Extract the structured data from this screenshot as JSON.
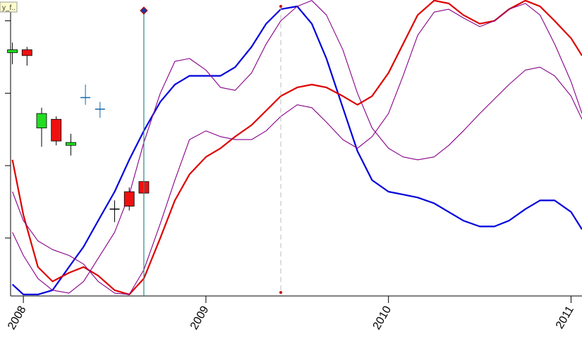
{
  "header_tag": "y_f..",
  "chart_data": {
    "type": "line",
    "title": "",
    "xlabel": "",
    "ylabel": "",
    "x_tick_labels": [
      "2008",
      "2009",
      "2010",
      "2011"
    ],
    "x_ticks": [
      2008.0,
      2009.0,
      2010.0,
      2011.0
    ],
    "xlim": [
      2007.93,
      2011.06
    ],
    "ylim": [
      0,
      100
    ],
    "y_tick_values": [
      20,
      45,
      70,
      95
    ],
    "y_tick_labels_visible": false,
    "grid": false,
    "legend": "none",
    "cursor_x": 2008.66,
    "dashed_marker_x": 2009.41,
    "series": [
      {
        "color": "#0000dd",
        "width": 2.2,
        "points": [
          [
            2007.94,
            4
          ],
          [
            2008.0,
            0.5
          ],
          [
            2008.08,
            0.5
          ],
          [
            2008.16,
            2
          ],
          [
            2008.25,
            10
          ],
          [
            2008.33,
            17
          ],
          [
            2008.41,
            26
          ],
          [
            2008.5,
            36
          ],
          [
            2008.58,
            47
          ],
          [
            2008.66,
            57
          ],
          [
            2008.75,
            67
          ],
          [
            2008.83,
            73
          ],
          [
            2008.91,
            76
          ],
          [
            2009.0,
            76
          ],
          [
            2009.08,
            76
          ],
          [
            2009.16,
            79
          ],
          [
            2009.25,
            86
          ],
          [
            2009.33,
            94
          ],
          [
            2009.41,
            99
          ],
          [
            2009.5,
            100
          ],
          [
            2009.58,
            94
          ],
          [
            2009.66,
            82
          ],
          [
            2009.75,
            65
          ],
          [
            2009.83,
            50
          ],
          [
            2009.91,
            40
          ],
          [
            2010.0,
            36
          ],
          [
            2010.08,
            35
          ],
          [
            2010.16,
            34
          ],
          [
            2010.25,
            32
          ],
          [
            2010.33,
            29
          ],
          [
            2010.41,
            26
          ],
          [
            2010.5,
            24
          ],
          [
            2010.58,
            24
          ],
          [
            2010.66,
            26
          ],
          [
            2010.75,
            30
          ],
          [
            2010.83,
            33
          ],
          [
            2010.91,
            33
          ],
          [
            2011.0,
            29
          ],
          [
            2011.06,
            23
          ]
        ]
      },
      {
        "color": "#dd0000",
        "width": 2.2,
        "points": [
          [
            2007.94,
            47
          ],
          [
            2008.0,
            28
          ],
          [
            2008.08,
            10
          ],
          [
            2008.16,
            5
          ],
          [
            2008.25,
            8
          ],
          [
            2008.33,
            10
          ],
          [
            2008.41,
            7
          ],
          [
            2008.5,
            2
          ],
          [
            2008.58,
            0.5
          ],
          [
            2008.66,
            6
          ],
          [
            2008.75,
            20
          ],
          [
            2008.83,
            33
          ],
          [
            2008.91,
            42
          ],
          [
            2009.0,
            48
          ],
          [
            2009.08,
            51
          ],
          [
            2009.16,
            55
          ],
          [
            2009.25,
            59
          ],
          [
            2009.33,
            64
          ],
          [
            2009.41,
            69
          ],
          [
            2009.5,
            72
          ],
          [
            2009.58,
            73
          ],
          [
            2009.66,
            72
          ],
          [
            2009.75,
            69
          ],
          [
            2009.83,
            66
          ],
          [
            2009.91,
            69
          ],
          [
            2010.0,
            77
          ],
          [
            2010.08,
            87
          ],
          [
            2010.16,
            97
          ],
          [
            2010.25,
            102
          ],
          [
            2010.33,
            101
          ],
          [
            2010.41,
            97
          ],
          [
            2010.5,
            94
          ],
          [
            2010.58,
            95
          ],
          [
            2010.66,
            99
          ],
          [
            2010.75,
            102
          ],
          [
            2010.83,
            100
          ],
          [
            2010.91,
            95
          ],
          [
            2011.0,
            89
          ],
          [
            2011.06,
            83
          ]
        ]
      },
      {
        "color": "#880088",
        "width": 1.1,
        "points": [
          [
            2007.94,
            36
          ],
          [
            2008.0,
            26
          ],
          [
            2008.08,
            19
          ],
          [
            2008.16,
            16
          ],
          [
            2008.25,
            14
          ],
          [
            2008.33,
            11
          ],
          [
            2008.41,
            5
          ],
          [
            2008.5,
            1
          ],
          [
            2008.58,
            0.5
          ],
          [
            2008.66,
            9
          ],
          [
            2008.75,
            25
          ],
          [
            2008.83,
            40
          ],
          [
            2008.91,
            54
          ],
          [
            2009.0,
            57
          ],
          [
            2009.08,
            55
          ],
          [
            2009.16,
            54
          ],
          [
            2009.25,
            54
          ],
          [
            2009.33,
            57
          ],
          [
            2009.41,
            62
          ],
          [
            2009.5,
            66
          ],
          [
            2009.58,
            65
          ],
          [
            2009.66,
            60
          ],
          [
            2009.75,
            54
          ],
          [
            2009.83,
            51
          ],
          [
            2009.91,
            55
          ],
          [
            2010.0,
            63
          ],
          [
            2010.08,
            76
          ],
          [
            2010.16,
            90
          ],
          [
            2010.25,
            98
          ],
          [
            2010.33,
            99
          ],
          [
            2010.41,
            96
          ],
          [
            2010.5,
            93
          ],
          [
            2010.58,
            95
          ],
          [
            2010.66,
            99
          ],
          [
            2010.75,
            101
          ],
          [
            2010.83,
            97
          ],
          [
            2010.91,
            87
          ],
          [
            2011.0,
            74
          ],
          [
            2011.06,
            63
          ]
        ]
      },
      {
        "color": "#880088",
        "width": 1.1,
        "points": [
          [
            2007.94,
            22
          ],
          [
            2008.0,
            14
          ],
          [
            2008.08,
            6
          ],
          [
            2008.16,
            2
          ],
          [
            2008.25,
            1
          ],
          [
            2008.33,
            5
          ],
          [
            2008.41,
            13
          ],
          [
            2008.5,
            22
          ],
          [
            2008.58,
            35
          ],
          [
            2008.66,
            53
          ],
          [
            2008.75,
            70
          ],
          [
            2008.83,
            81
          ],
          [
            2008.91,
            82
          ],
          [
            2009.0,
            78
          ],
          [
            2009.08,
            72
          ],
          [
            2009.16,
            71
          ],
          [
            2009.25,
            77
          ],
          [
            2009.33,
            87
          ],
          [
            2009.41,
            95
          ],
          [
            2009.5,
            100
          ],
          [
            2009.58,
            102
          ],
          [
            2009.66,
            97
          ],
          [
            2009.75,
            85
          ],
          [
            2009.83,
            70
          ],
          [
            2009.91,
            58
          ],
          [
            2010.0,
            51
          ],
          [
            2010.08,
            48
          ],
          [
            2010.16,
            47
          ],
          [
            2010.25,
            48
          ],
          [
            2010.33,
            52
          ],
          [
            2010.41,
            57
          ],
          [
            2010.5,
            63
          ],
          [
            2010.58,
            68
          ],
          [
            2010.66,
            73
          ],
          [
            2010.75,
            78
          ],
          [
            2010.83,
            79
          ],
          [
            2010.91,
            76
          ],
          [
            2011.0,
            69
          ],
          [
            2011.06,
            61
          ]
        ]
      }
    ],
    "candles": [
      {
        "t": 2007.94,
        "o": 84.0,
        "h": 87.5,
        "l": 80.0,
        "c": 85.0,
        "color": "#22dd22"
      },
      {
        "t": 2008.02,
        "o": 85.0,
        "h": 86.0,
        "l": 79.5,
        "c": 83.0,
        "color": "#ee1111"
      },
      {
        "t": 2008.1,
        "o": 58.0,
        "h": 65.0,
        "l": 51.5,
        "c": 63.0,
        "color": "#22dd22"
      },
      {
        "t": 2008.18,
        "o": 61.0,
        "h": 62.0,
        "l": 52.0,
        "c": 53.5,
        "color": "#ee1111"
      },
      {
        "t": 2008.26,
        "o": 52.0,
        "h": 56.0,
        "l": 48.5,
        "c": 53.0,
        "color": "#22dd22"
      },
      {
        "t": 2008.34,
        "o": 68.5,
        "h": 73.0,
        "l": 66.0,
        "c": 68.5,
        "color": "#1166aa"
      },
      {
        "t": 2008.42,
        "o": 64.5,
        "h": 67.0,
        "l": 61.5,
        "c": 64.5,
        "color": "#1166aa"
      },
      {
        "t": 2008.5,
        "o": 30.0,
        "h": 33.0,
        "l": 25.5,
        "c": 30.0,
        "color": "#000000"
      },
      {
        "t": 2008.58,
        "o": 36.0,
        "h": 37.5,
        "l": 29.5,
        "c": 31.0,
        "color": "#ee1111"
      },
      {
        "t": 2008.66,
        "o": 39.5,
        "h": 40.0,
        "l": 35.5,
        "c": 35.5,
        "color": "#ee1111"
      }
    ]
  }
}
